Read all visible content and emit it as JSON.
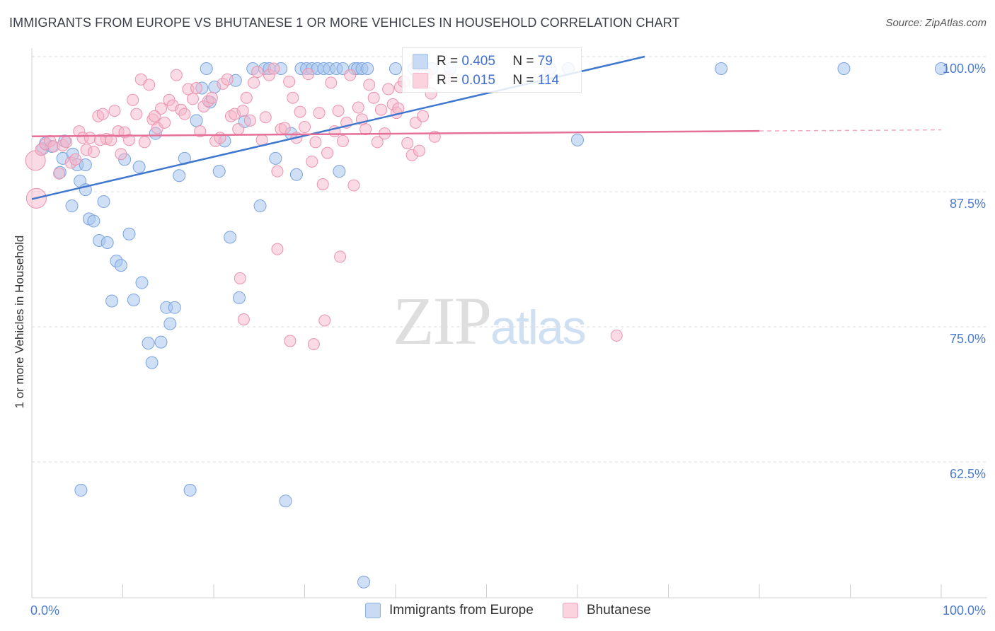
{
  "header": {
    "title": "IMMIGRANTS FROM EUROPE VS BHUTANESE 1 OR MORE VEHICLES IN HOUSEHOLD CORRELATION CHART",
    "source": "Source: ZipAtlas.com"
  },
  "watermark": {
    "zip": "ZIP",
    "atlas": "atlas"
  },
  "stats": [
    {
      "r_label": "R =",
      "r_value": "0.405",
      "n_label": "N =",
      "n_value": "79",
      "color": "#a7c4ec"
    },
    {
      "r_label": "R =",
      "r_value": "0.015",
      "n_label": "N =",
      "n_value": "114",
      "color": "#f5b6c9"
    }
  ],
  "legend": [
    {
      "label": "Immigrants from Europe",
      "color": "#a7c4ec"
    },
    {
      "label": "Bhutanese",
      "color": "#f5b6c9"
    }
  ],
  "colors": {
    "blue_fill": "#a7c4ec",
    "blue_stroke": "#7aa3df",
    "blue_line": "#3f77d0",
    "pink_fill": "#f5b6c9",
    "pink_stroke": "#ea93ae",
    "pink_line": "#e56f98",
    "axis_text": "#4a7bd0",
    "grid": "#dedede"
  },
  "chart_data": {
    "type": "scatter",
    "title": "IMMIGRANTS FROM EUROPE VS BHUTANESE 1 OR MORE VEHICLES IN HOUSEHOLD CORRELATION CHART",
    "xlabel": "",
    "ylabel": "1 or more Vehicles in Household",
    "xlim": [
      0,
      100
    ],
    "ylim": [
      51,
      101
    ],
    "x_tick_labels": [
      "0.0%",
      "100.0%"
    ],
    "y_ticks": [
      {
        "value": 100.0,
        "label": "100.0%"
      },
      {
        "value": 87.5,
        "label": "87.5%"
      },
      {
        "value": 75.0,
        "label": "75.0%"
      },
      {
        "value": 62.5,
        "label": "62.5%"
      }
    ],
    "series": [
      {
        "name": "Immigrants from Europe",
        "r": 0.405,
        "n": 79,
        "trend": {
          "x": [
            0,
            67.4
          ],
          "y": [
            89.5,
            100.0
          ]
        },
        "points": [
          [
            1.2,
            92.6
          ],
          [
            1.5,
            93.1
          ],
          [
            2.2,
            92.8
          ],
          [
            3.1,
            90.4
          ],
          [
            3.4,
            91.7
          ],
          [
            3.6,
            93.3
          ],
          [
            4.4,
            87.3
          ],
          [
            4.5,
            92.1
          ],
          [
            5.0,
            91.1
          ],
          [
            5.3,
            89.6
          ],
          [
            5.9,
            91.1
          ],
          [
            5.4,
            61.0
          ],
          [
            5.9,
            88.8
          ],
          [
            6.3,
            86.1
          ],
          [
            6.8,
            85.9
          ],
          [
            7.4,
            84.1
          ],
          [
            7.9,
            87.7
          ],
          [
            8.3,
            83.9
          ],
          [
            8.8,
            78.5
          ],
          [
            9.3,
            82.2
          ],
          [
            9.8,
            81.8
          ],
          [
            10.2,
            91.6
          ],
          [
            10.7,
            84.7
          ],
          [
            11.2,
            78.6
          ],
          [
            11.8,
            90.9
          ],
          [
            12.1,
            80.2
          ],
          [
            12.8,
            74.6
          ],
          [
            13.2,
            72.8
          ],
          [
            13.6,
            94.0
          ],
          [
            14.2,
            74.7
          ],
          [
            14.8,
            77.9
          ],
          [
            15.2,
            76.4
          ],
          [
            15.7,
            77.9
          ],
          [
            16.2,
            90.1
          ],
          [
            16.8,
            91.7
          ],
          [
            17.4,
            61.0
          ],
          [
            18.1,
            95.2
          ],
          [
            18.7,
            98.2
          ],
          [
            19.2,
            100.0
          ],
          [
            19.6,
            96.9
          ],
          [
            20.1,
            98.3
          ],
          [
            20.6,
            90.5
          ],
          [
            21.2,
            93.3
          ],
          [
            21.8,
            84.4
          ],
          [
            22.4,
            98.9
          ],
          [
            22.8,
            78.8
          ],
          [
            23.4,
            95.1
          ],
          [
            24.3,
            100.0
          ],
          [
            25.1,
            87.3
          ],
          [
            25.6,
            100.0
          ],
          [
            26.1,
            100.0
          ],
          [
            26.8,
            91.7
          ],
          [
            27.4,
            100.0
          ],
          [
            27.9,
            60.0
          ],
          [
            28.5,
            94.0
          ],
          [
            29.1,
            90.2
          ],
          [
            29.6,
            100.0
          ],
          [
            30.2,
            100.0
          ],
          [
            30.8,
            100.0
          ],
          [
            31.4,
            100.0
          ],
          [
            32.1,
            100.0
          ],
          [
            32.7,
            100.0
          ],
          [
            33.5,
            100.0
          ],
          [
            33.8,
            90.5
          ],
          [
            34.2,
            100.0
          ],
          [
            35.5,
            100.0
          ],
          [
            35.8,
            100.0
          ],
          [
            36.3,
            100.0
          ],
          [
            36.9,
            100.0
          ],
          [
            36.5,
            52.5
          ],
          [
            40.0,
            100.0
          ],
          [
            42.0,
            100.0
          ],
          [
            44.0,
            100.0
          ],
          [
            46.0,
            100.0
          ],
          [
            57.0,
            100.0
          ],
          [
            59.0,
            100.0
          ],
          [
            60.0,
            93.4
          ],
          [
            75.8,
            100.0
          ],
          [
            89.3,
            100.0
          ],
          [
            100.0,
            100.0
          ]
        ]
      },
      {
        "name": "Bhutanese",
        "r": 0.015,
        "n": 114,
        "trend": {
          "x": [
            0,
            80
          ],
          "y": [
            93.6,
            94.1
          ]
        },
        "trend_dashed_to": {
          "x": 100,
          "y": 94.2
        },
        "points": [
          [
            0.4,
            91.5
          ],
          [
            0.5,
            88.0
          ],
          [
            1.0,
            92.5
          ],
          [
            1.5,
            93.0
          ],
          [
            2.0,
            93.3
          ],
          [
            2.4,
            92.8
          ],
          [
            3.0,
            90.3
          ],
          [
            3.4,
            92.9
          ],
          [
            3.8,
            93.2
          ],
          [
            4.3,
            91.3
          ],
          [
            4.8,
            91.6
          ],
          [
            5.2,
            94.2
          ],
          [
            5.6,
            93.6
          ],
          [
            6.0,
            92.5
          ],
          [
            6.4,
            93.6
          ],
          [
            6.8,
            92.3
          ],
          [
            7.3,
            95.6
          ],
          [
            7.8,
            95.8
          ],
          [
            8.2,
            93.5
          ],
          [
            8.7,
            93.4
          ],
          [
            9.1,
            96.1
          ],
          [
            9.5,
            94.2
          ],
          [
            9.8,
            92.1
          ],
          [
            10.2,
            94.1
          ],
          [
            10.7,
            93.4
          ],
          [
            11.1,
            97.1
          ],
          [
            11.5,
            95.8
          ],
          [
            12.0,
            99.0
          ],
          [
            12.4,
            93.2
          ],
          [
            12.9,
            98.5
          ],
          [
            13.3,
            95.3
          ],
          [
            13.8,
            94.5
          ],
          [
            14.2,
            96.3
          ],
          [
            14.6,
            95.0
          ],
          [
            15.1,
            97.1
          ],
          [
            15.5,
            96.6
          ],
          [
            15.9,
            99.4
          ],
          [
            16.4,
            96.2
          ],
          [
            16.8,
            95.8
          ],
          [
            17.2,
            98.1
          ],
          [
            17.7,
            97.2
          ],
          [
            18.1,
            98.2
          ],
          [
            18.5,
            94.2
          ],
          [
            18.9,
            96.5
          ],
          [
            19.4,
            97.0
          ],
          [
            19.8,
            97.3
          ],
          [
            20.2,
            93.3
          ],
          [
            20.7,
            93.6
          ],
          [
            21.0,
            98.6
          ],
          [
            21.5,
            99.0
          ],
          [
            21.9,
            95.6
          ],
          [
            22.3,
            95.8
          ],
          [
            22.7,
            94.4
          ],
          [
            23.2,
            96.1
          ],
          [
            23.6,
            97.3
          ],
          [
            24.0,
            95.2
          ],
          [
            24.4,
            98.7
          ],
          [
            24.8,
            99.7
          ],
          [
            25.3,
            93.4
          ],
          [
            25.7,
            95.5
          ],
          [
            26.1,
            99.4
          ],
          [
            26.6,
            100.0
          ],
          [
            27.0,
            90.5
          ],
          [
            27.4,
            94.4
          ],
          [
            27.8,
            94.5
          ],
          [
            28.3,
            98.8
          ],
          [
            28.7,
            97.3
          ],
          [
            29.1,
            93.6
          ],
          [
            29.5,
            96.0
          ],
          [
            30.0,
            94.6
          ],
          [
            30.4,
            99.5
          ],
          [
            30.8,
            91.4
          ],
          [
            31.2,
            93.2
          ],
          [
            31.6,
            95.9
          ],
          [
            32.0,
            89.3
          ],
          [
            32.5,
            92.2
          ],
          [
            32.9,
            98.7
          ],
          [
            33.3,
            94.2
          ],
          [
            33.7,
            96.1
          ],
          [
            34.2,
            93.3
          ],
          [
            34.6,
            95.0
          ],
          [
            35.0,
            99.4
          ],
          [
            35.4,
            89.2
          ],
          [
            35.9,
            96.4
          ],
          [
            36.3,
            95.3
          ],
          [
            36.7,
            94.4
          ],
          [
            37.1,
            98.5
          ],
          [
            37.6,
            97.3
          ],
          [
            38.0,
            93.2
          ],
          [
            38.4,
            96.2
          ],
          [
            38.8,
            94.0
          ],
          [
            39.2,
            98.1
          ],
          [
            39.7,
            96.7
          ],
          [
            40.1,
            95.9
          ],
          [
            40.5,
            98.3
          ],
          [
            40.9,
            98.8
          ],
          [
            41.3,
            93.1
          ],
          [
            41.8,
            92.0
          ],
          [
            42.2,
            95.0
          ],
          [
            42.6,
            92.4
          ],
          [
            43.0,
            95.6
          ],
          [
            43.4,
            99.5
          ],
          [
            43.9,
            97.7
          ],
          [
            44.3,
            93.7
          ],
          [
            7.5,
            93.4
          ],
          [
            13.5,
            95.6
          ],
          [
            22.9,
            80.6
          ],
          [
            23.3,
            76.8
          ],
          [
            27.0,
            83.3
          ],
          [
            28.4,
            74.8
          ],
          [
            31.0,
            74.5
          ],
          [
            32.2,
            76.7
          ],
          [
            33.9,
            82.6
          ],
          [
            40.3,
            96.3
          ],
          [
            45.7,
            99.2
          ],
          [
            64.3,
            75.3
          ]
        ]
      }
    ]
  }
}
